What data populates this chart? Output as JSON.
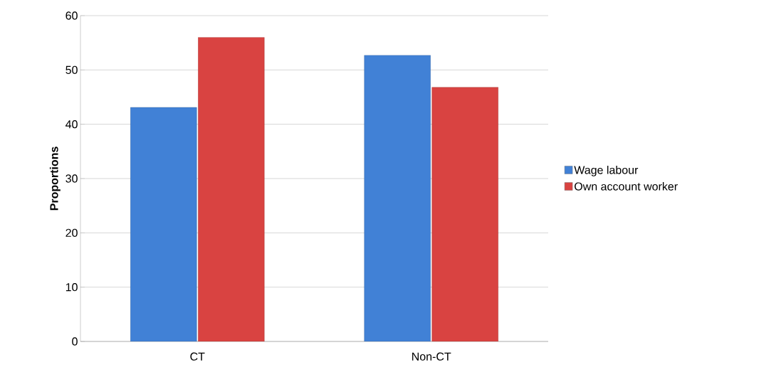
{
  "chart_data": {
    "type": "bar",
    "ylabel": "Proportions",
    "categories": [
      "CT",
      "Non-CT"
    ],
    "series": [
      {
        "name": "Wage labour",
        "color": "#4181d6",
        "values": [
          43.1,
          52.7
        ]
      },
      {
        "name": "Own account worker",
        "color": "#d94341",
        "values": [
          56.0,
          46.8
        ]
      }
    ],
    "ylim": [
      0,
      60
    ],
    "yticks": [
      0,
      10,
      20,
      30,
      40,
      50,
      60
    ],
    "grid": "y",
    "legend": "right"
  }
}
